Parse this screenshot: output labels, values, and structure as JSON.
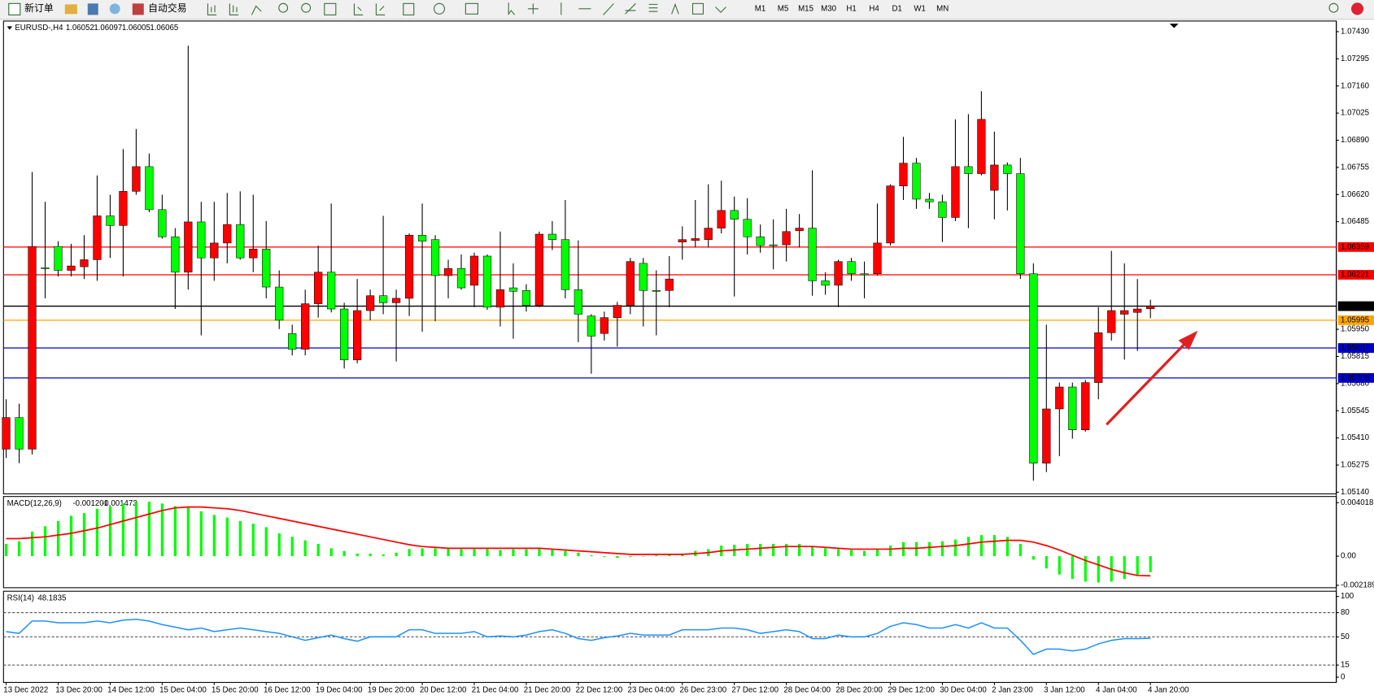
{
  "toolbar": {
    "new_order": "新订单",
    "auto_trading": "自动交易",
    "timeframes": [
      "M1",
      "M5",
      "M15",
      "M30",
      "H1",
      "H4",
      "D1",
      "W1",
      "MN"
    ]
  },
  "chart_data": [
    {
      "type": "candlestick",
      "title": "EURUSD-,H4",
      "up_color": "#ff0000",
      "down_color": "#00ff00",
      "wick_color": "#000000",
      "ylim": [
        1.05136,
        1.07474
      ],
      "yticks": [
        {
          "value": 1.0743,
          "label": "1.07430"
        },
        1.07295,
        {
          "value": 1.0716,
          "label": "1.07160"
        },
        1.07025,
        {
          "value": 1.0689,
          "label": "1.06890"
        },
        1.06755,
        {
          "value": 1.0662,
          "label": "1.06620"
        },
        1.06485,
        {
          "value": 1.0595,
          "label": "1.05950"
        },
        1.05815,
        {
          "value": 1.0568,
          "label": "1.05680"
        },
        1.05545,
        {
          "value": 1.0541,
          "label": "1.05410"
        },
        1.05275,
        {
          "value": 1.0514,
          "label": "1.05140"
        }
      ],
      "levels": [
        {
          "value": 1.06359,
          "color": "#ff0000"
        },
        {
          "value": 1.06221,
          "color": "#ff0000"
        },
        {
          "value": 1.06065,
          "color": "#000000"
        },
        {
          "value": 1.05995,
          "color": "#ffa500"
        },
        {
          "value": 1.05857,
          "color": "#0000cd"
        },
        {
          "value": 1.05708,
          "color": "#0000cd"
        }
      ],
      "categories": [
        "13 Dec 2022",
        null,
        null,
        null,
        "13 Dec 20:00",
        null,
        null,
        null,
        "14 Dec 12:00",
        null,
        null,
        null,
        "15 Dec 04:00",
        null,
        null,
        null,
        "15 Dec 20:00",
        null,
        null,
        null,
        "16 Dec 12:00",
        null,
        null,
        null,
        "19 Dec 04:00",
        null,
        null,
        null,
        "19 Dec 20:00",
        null,
        null,
        null,
        "20 Dec 12:00",
        null,
        null,
        null,
        "21 Dec 04:00",
        null,
        null,
        null,
        "21 Dec 20:00",
        null,
        null,
        null,
        "22 Dec 12:00",
        null,
        null,
        null,
        "23 Dec 04:00",
        null,
        null,
        null,
        "26 Dec 23:00",
        null,
        null,
        null,
        "27 Dec 12:00",
        null,
        null,
        null,
        "28 Dec 04:00",
        null,
        null,
        null,
        "28 Dec 20:00",
        null,
        null,
        null,
        "29 Dec 12:00",
        null,
        null,
        null,
        "30 Dec 04:00",
        null,
        null,
        null,
        "2 Jan 23:00",
        null,
        null,
        null,
        "3 Jan 12:00",
        null,
        null,
        null,
        "4 Jan 04:00",
        null,
        null,
        null,
        "4 Jan 20:00"
      ],
      "ohlc": [
        [
          1.05354,
          1.05602,
          1.0531,
          1.05511
        ],
        [
          1.05511,
          1.0558,
          1.05284,
          1.05354
        ],
        [
          1.05354,
          1.06732,
          1.05327,
          1.06362
        ],
        [
          1.06256,
          1.06584,
          1.06104,
          1.06252
        ],
        [
          1.06362,
          1.06388,
          1.06213,
          1.06243
        ],
        [
          1.06243,
          1.06375,
          1.06213,
          1.06265
        ],
        [
          1.06261,
          1.06418,
          1.062,
          1.06296
        ],
        [
          1.06296,
          1.06715,
          1.06191,
          1.06514
        ],
        [
          1.06514,
          1.06619,
          1.06305,
          1.06466
        ],
        [
          1.06466,
          1.06846,
          1.06213,
          1.06636
        ],
        [
          1.06636,
          1.06946,
          1.06619,
          1.06759
        ],
        [
          1.06759,
          1.06824,
          1.06532,
          1.06545
        ],
        [
          1.06545,
          1.06619,
          1.06401,
          1.0641
        ],
        [
          1.0641,
          1.06453,
          1.06051,
          1.06234
        ],
        [
          1.06234,
          1.0736,
          1.06147,
          1.06484
        ],
        [
          1.06484,
          1.06584,
          1.0592,
          1.06305
        ],
        [
          1.06305,
          1.06584,
          1.06191,
          1.06379
        ],
        [
          1.06379,
          1.06628,
          1.06278,
          1.06471
        ],
        [
          1.06471,
          1.06636,
          1.06296,
          1.06305
        ],
        [
          1.06305,
          1.06619,
          1.06234,
          1.06349
        ],
        [
          1.06349,
          1.06488,
          1.06104,
          1.0616
        ],
        [
          1.0616,
          1.06243,
          1.05951,
          1.05995
        ],
        [
          1.05929,
          1.05973,
          1.0582,
          1.05851
        ],
        [
          1.05851,
          1.06147,
          1.0582,
          1.06077
        ],
        [
          1.06077,
          1.06366,
          1.06008,
          1.06234
        ],
        [
          1.06234,
          1.06575,
          1.06034,
          1.06051
        ],
        [
          1.06051,
          1.06082,
          1.05755,
          1.05798
        ],
        [
          1.05798,
          1.062,
          1.05781,
          1.06043
        ],
        [
          1.06043,
          1.06147,
          1.05995,
          1.06117
        ],
        [
          1.06117,
          1.06514,
          1.06025,
          1.06082
        ],
        [
          1.06082,
          1.06147,
          1.0579,
          1.06104
        ],
        [
          1.06104,
          1.06427,
          1.06016,
          1.06418
        ],
        [
          1.06418,
          1.06575,
          1.05938,
          1.06388
        ],
        [
          1.06396,
          1.06418,
          1.0599,
          1.06217
        ],
        [
          1.06217,
          1.06296,
          1.06104,
          1.06252
        ],
        [
          1.06252,
          1.06322,
          1.06147,
          1.06156
        ],
        [
          1.06169,
          1.06331,
          1.0606,
          1.06314
        ],
        [
          1.06314,
          1.06322,
          1.06047,
          1.0606
        ],
        [
          1.0606,
          1.06436,
          1.05964,
          1.06147
        ],
        [
          1.06156,
          1.06278,
          1.05903,
          1.06139
        ],
        [
          1.06143,
          1.06174,
          1.06038,
          1.06069
        ],
        [
          1.06069,
          1.06436,
          1.0606,
          1.06423
        ],
        [
          1.06423,
          1.06488,
          1.06344,
          1.06396
        ],
        [
          1.06396,
          1.06593,
          1.06104,
          1.06147
        ],
        [
          1.06147,
          1.06392,
          1.05886,
          1.06025
        ],
        [
          1.06016,
          1.06025,
          1.05729,
          1.05916
        ],
        [
          1.05929,
          1.06038,
          1.05894,
          1.06008
        ],
        [
          1.06008,
          1.06086,
          1.05864,
          1.06069
        ],
        [
          1.06069,
          1.06305,
          1.06025,
          1.06287
        ],
        [
          1.06278,
          1.06305,
          1.05964,
          1.06143
        ],
        [
          1.06143,
          1.06243,
          1.0592,
          1.06139
        ],
        [
          1.06143,
          1.06314,
          1.0606,
          1.062
        ],
        [
          1.06384,
          1.06462,
          1.06296,
          1.06396
        ],
        [
          1.06392,
          1.06593,
          1.06357,
          1.06401
        ],
        [
          1.06396,
          1.06671,
          1.06357,
          1.06453
        ],
        [
          1.06453,
          1.06689,
          1.06427,
          1.06541
        ],
        [
          1.06541,
          1.0661,
          1.06113,
          1.06497
        ],
        [
          1.06497,
          1.06602,
          1.06322,
          1.0641
        ],
        [
          1.0641,
          1.06471,
          1.06331,
          1.06366
        ],
        [
          1.0637,
          1.06497,
          1.06248,
          1.06366
        ],
        [
          1.0637,
          1.06549,
          1.06287,
          1.06436
        ],
        [
          1.0644,
          1.06523,
          1.06357,
          1.06453
        ],
        [
          1.06453,
          1.06741,
          1.06117,
          1.06191
        ],
        [
          1.06191,
          1.06234,
          1.06122,
          1.06169
        ],
        [
          1.06169,
          1.06296,
          1.0606,
          1.06287
        ],
        [
          1.06287,
          1.06305,
          1.06191,
          1.06226
        ],
        [
          1.06226,
          1.06287,
          1.06104,
          1.06221
        ],
        [
          1.06226,
          1.06575,
          1.06217,
          1.06379
        ],
        [
          1.06379,
          1.06671,
          1.06366,
          1.06663
        ],
        [
          1.06663,
          1.06907,
          1.06593,
          1.06776
        ],
        [
          1.06776,
          1.06802,
          1.06549,
          1.06597
        ],
        [
          1.06597,
          1.06628,
          1.06549,
          1.06584
        ],
        [
          1.06584,
          1.06619,
          1.06384,
          1.06506
        ],
        [
          1.06506,
          1.06994,
          1.06488,
          1.06759
        ],
        [
          1.06759,
          1.0702,
          1.06453,
          1.06724
        ],
        [
          1.06724,
          1.07134,
          1.06715,
          1.06994
        ],
        [
          1.06641,
          1.06933,
          1.06497,
          1.06767
        ],
        [
          1.06767,
          1.0678,
          1.06541,
          1.06724
        ],
        [
          1.06724,
          1.06802,
          1.062,
          1.06226
        ],
        [
          1.06226,
          1.06278,
          1.05197,
          1.05284
        ],
        [
          1.05284,
          1.05973,
          1.0524,
          1.05554
        ],
        [
          1.05554,
          1.05685,
          1.05319,
          1.05663
        ],
        [
          1.05663,
          1.05685,
          1.05406,
          1.0545
        ],
        [
          1.0545,
          1.05698,
          1.05441,
          1.05685
        ],
        [
          1.05685,
          1.0606,
          1.05602,
          1.05933
        ],
        [
          1.05933,
          1.0634,
          1.05894,
          1.06043
        ],
        [
          1.06025,
          1.06278,
          1.05799,
          1.06043
        ],
        [
          1.06034,
          1.062,
          1.05842,
          1.06051
        ],
        [
          1.06052,
          1.06097,
          1.06005,
          1.06065
        ]
      ]
    },
    {
      "type": "macd",
      "title": "MACD(12,26,9)",
      "ylim": [
        -0.00237,
        0.00448
      ],
      "yticks": [
        0.004018,
        {
          "value": 0,
          "label": "0.00"
        },
        -0.002189
      ],
      "histogram": {
        "color": "#00ff00",
        "values": [
          0.000922,
          0.00112,
          0.001845,
          0.00224,
          0.002636,
          0.003031,
          0.003229,
          0.003559,
          0.003756,
          0.003954,
          0.004086,
          0.004086,
          0.003954,
          0.003756,
          0.00369,
          0.003361,
          0.003097,
          0.0029,
          0.002636,
          0.002438,
          0.002175,
          0.001713,
          0.00145,
          0.001186,
          0.000922,
          0.000593,
          0.000395,
          0.000198,
          0.000198,
          0.000132,
          0.000264,
          0.000527,
          0.000593,
          0.000593,
          0.000593,
          0.000527,
          0.000527,
          0.000527,
          0.000461,
          0.000527,
          0.000527,
          0.000593,
          0.000527,
          0.000395,
          0.000264,
          6.6e-05,
          -6.6e-05,
          -0.000132,
          -6.6e-05,
          0,
          6.6e-05,
          0.000132,
          0.000198,
          0.000395,
          0.000527,
          0.000791,
          0.000857,
          0.000922,
          0.000922,
          0.000922,
          0.000922,
          0.000922,
          0.000725,
          0.000593,
          0.000527,
          0.000461,
          0.000395,
          0.000527,
          0.000791,
          0.001054,
          0.001054,
          0.001054,
          0.00112,
          0.001252,
          0.00145,
          0.001582,
          0.001582,
          0.00145,
          0.000922,
          -0.000264,
          -0.000922,
          -0.001384,
          -0.001713,
          -0.001911,
          -0.001977,
          -0.001911,
          -0.001713,
          -0.00145,
          -0.001201
        ]
      },
      "signal": {
        "color": "#ff0000",
        "values": [
          0.001318,
          0.001318,
          0.001384,
          0.00145,
          0.001582,
          0.001713,
          0.001911,
          0.002109,
          0.002372,
          0.002636,
          0.0029,
          0.003163,
          0.003427,
          0.003625,
          0.00369,
          0.00369,
          0.003625,
          0.003559,
          0.003427,
          0.003229,
          0.003031,
          0.002834,
          0.002636,
          0.002438,
          0.002241,
          0.002043,
          0.001845,
          0.001648,
          0.00145,
          0.001252,
          0.001054,
          0.000857,
          0.000725,
          0.000659,
          0.000593,
          0.000593,
          0.000593,
          0.000593,
          0.000593,
          0.000593,
          0.000593,
          0.000593,
          0.000527,
          0.000461,
          0.000395,
          0.00033,
          0.000264,
          0.000198,
          0.000132,
          0.000132,
          0.000132,
          0.000132,
          0.000132,
          0.000198,
          0.000264,
          0.000395,
          0.000461,
          0.000527,
          0.000593,
          0.000659,
          0.000725,
          0.000725,
          0.000725,
          0.000659,
          0.000593,
          0.000527,
          0.000527,
          0.000527,
          0.000527,
          0.000593,
          0.000593,
          0.000659,
          0.000725,
          0.000791,
          0.000922,
          0.001054,
          0.00112,
          0.001186,
          0.001186,
          0.001054,
          0.000791,
          0.000461,
          6.6e-05,
          -0.00033,
          -0.000659,
          -0.000989,
          -0.001252,
          -0.00145,
          -0.001473
        ]
      }
    },
    {
      "type": "line",
      "title": "RSI(14)",
      "color": "#1e90ff",
      "ylim": [
        -6.5,
        106.5
      ],
      "yticks": [
        100,
        80,
        50,
        15,
        0
      ],
      "levels": [
        80,
        50,
        15
      ],
      "values": [
        56.5,
        54.3,
        69.6,
        69.6,
        67.4,
        67.4,
        67.4,
        69.6,
        67.4,
        70.7,
        71.7,
        69.6,
        65.2,
        62.0,
        58.7,
        60.9,
        56.5,
        58.7,
        60.9,
        58.7,
        56.5,
        54.3,
        50.0,
        45.7,
        48.9,
        52.2,
        47.8,
        44.6,
        50.0,
        50.0,
        50.0,
        58.7,
        58.7,
        54.3,
        54.3,
        54.3,
        56.5,
        50.0,
        51.1,
        50.0,
        52.2,
        56.5,
        58.7,
        54.3,
        47.8,
        45.7,
        48.9,
        51.1,
        54.3,
        52.2,
        52.2,
        52.2,
        58.7,
        58.7,
        58.7,
        60.9,
        60.9,
        58.7,
        54.3,
        56.5,
        58.7,
        56.5,
        47.8,
        47.8,
        52.2,
        50.0,
        50.0,
        54.3,
        63.0,
        67.4,
        65.2,
        60.9,
        60.9,
        65.2,
        60.9,
        67.4,
        60.9,
        60.9,
        45.7,
        28.3,
        34.8,
        34.8,
        32.6,
        34.8,
        41.3,
        45.7,
        47.8,
        47.8,
        48.1835
      ]
    }
  ]
}
